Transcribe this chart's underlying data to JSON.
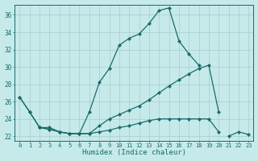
{
  "xlabel": "Humidex (Indice chaleur)",
  "bg_color": "#c6eaea",
  "grid_color": "#a8cccc",
  "line_color": "#1a6b6b",
  "xlim": [
    -0.5,
    23.5
  ],
  "ylim": [
    21.5,
    37.2
  ],
  "yticks": [
    22,
    24,
    26,
    28,
    30,
    32,
    34,
    36
  ],
  "xticks": [
    0,
    1,
    2,
    3,
    4,
    5,
    6,
    7,
    8,
    9,
    10,
    11,
    12,
    13,
    14,
    15,
    16,
    17,
    18,
    19,
    20,
    21,
    22,
    23
  ],
  "lines": [
    {
      "x": [
        0,
        1,
        2,
        3,
        4,
        5,
        6,
        7,
        8,
        9,
        10,
        11,
        12,
        13,
        14,
        15,
        16,
        17,
        18
      ],
      "y": [
        26.5,
        24.8,
        23.0,
        23.0,
        22.5,
        22.3,
        22.3,
        24.8,
        28.2,
        29.8,
        32.5,
        33.3,
        33.8,
        35.0,
        36.5,
        36.8,
        33.0,
        31.5,
        30.2
      ]
    },
    {
      "x": [
        0,
        1,
        2,
        3,
        4,
        5,
        6,
        7,
        8,
        9,
        10,
        11,
        12,
        13,
        14,
        15,
        16,
        17,
        18,
        19,
        20
      ],
      "y": [
        26.5,
        24.8,
        23.0,
        22.8,
        22.5,
        22.3,
        22.3,
        22.3,
        23.2,
        24.0,
        24.5,
        25.0,
        25.5,
        26.2,
        27.0,
        27.8,
        28.5,
        29.2,
        29.8,
        30.2,
        24.8
      ]
    },
    {
      "x": [
        2,
        3,
        4,
        5,
        6,
        7,
        8,
        9,
        10,
        11,
        12,
        13,
        14,
        15,
        16,
        17,
        18,
        19,
        20
      ],
      "y": [
        23.0,
        22.8,
        22.5,
        22.3,
        22.3,
        22.3,
        22.5,
        22.7,
        23.0,
        23.2,
        23.5,
        23.8,
        24.0,
        24.0,
        24.0,
        24.0,
        24.0,
        24.0,
        22.5
      ]
    },
    {
      "x": [
        21,
        22,
        23
      ],
      "y": [
        22.0,
        22.5,
        22.2
      ]
    }
  ]
}
